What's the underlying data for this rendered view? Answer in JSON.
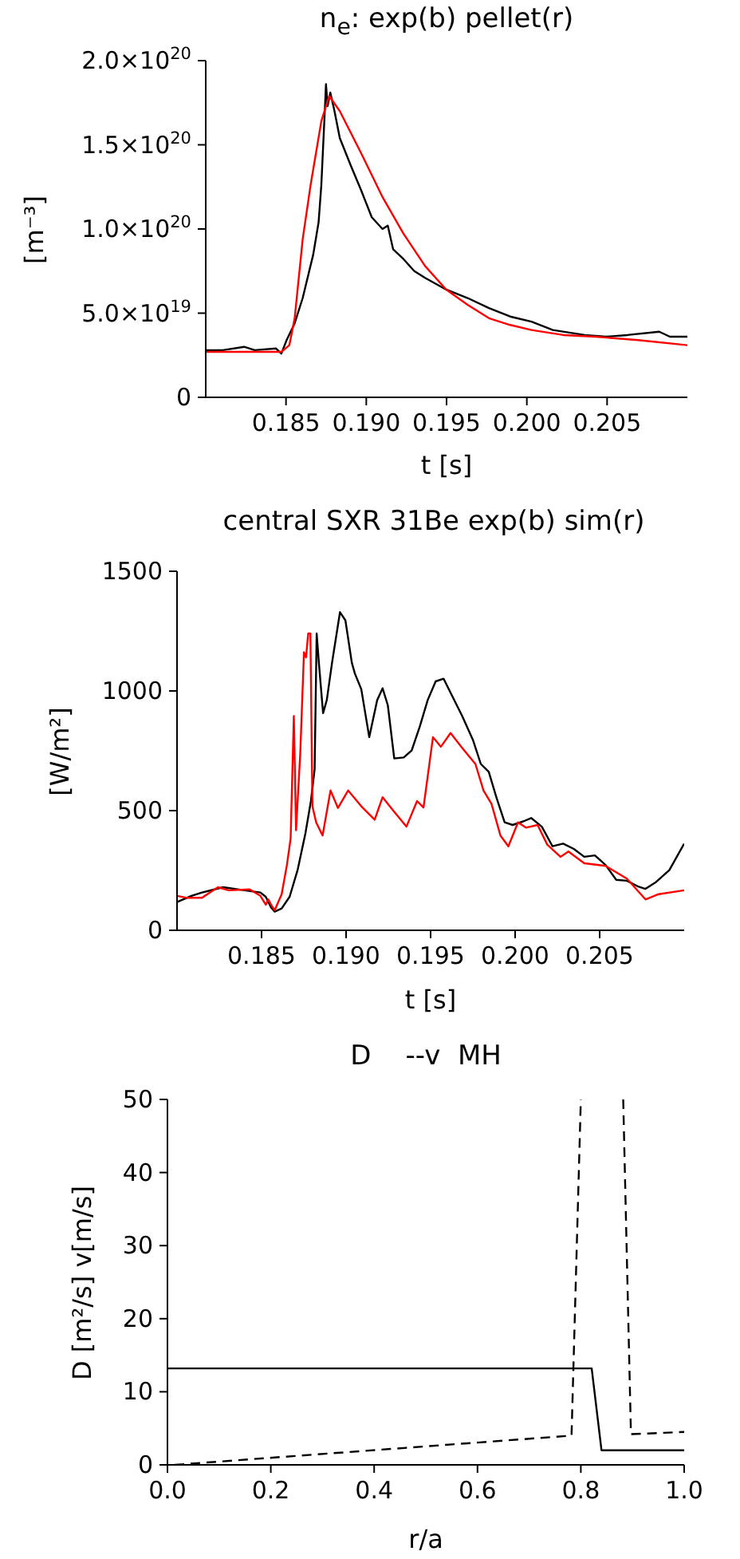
{
  "chart_data": [
    {
      "type": "line",
      "title": "n$_{e}$: exp(b) pellet(r)",
      "xlabel": "t [s]",
      "ylabel": "[m⁻³]",
      "xlim": [
        0.18,
        0.21
      ],
      "xticks": [
        0.185,
        {
          "value": 0.19,
          "label": "0.190"
        },
        0.195,
        {
          "value": 0.2,
          "label": "0.200"
        },
        0.205
      ],
      "ylim": [
        0,
        2e+20
      ],
      "yticks": [
        0,
        {
          "value": 5e+19,
          "label": "5.0×10$^{19}$"
        },
        {
          "value": 1e+20,
          "label": "1.0×10$^{20}$"
        },
        {
          "value": 1.5e+20,
          "label": "1.5×10$^{20}$"
        },
        {
          "value": 2e+20,
          "label": "2.0×10$^{20}$"
        }
      ],
      "series": [
        {
          "color": "#000000",
          "x": [
            0.18,
            0.18106,
            0.18239,
            0.18305,
            0.18438,
            0.18471,
            0.18504,
            0.18554,
            0.18604,
            0.1867,
            0.18703,
            0.1872,
            0.18743,
            0.18749,
            0.18759,
            0.18776,
            0.18802,
            0.18835,
            0.18902,
            0.18968,
            0.19034,
            0.19101,
            0.19134,
            0.19167,
            0.19233,
            0.19299,
            0.19366,
            0.19498,
            0.19631,
            0.19764,
            0.19896,
            0.20029,
            0.20162,
            0.2036,
            0.20493,
            0.20626,
            0.20825,
            0.20891,
            0.21
          ],
          "values": [
            2.8e+19,
            2.8e+19,
            3e+19,
            2.8e+19,
            2.9e+19,
            2.6e+19,
            3.4e+19,
            4.4e+19,
            5.9e+19,
            8.5e+19,
            1.04e+20,
            1.26e+20,
            1.73e+20,
            1.86e+20,
            1.73e+20,
            1.81e+20,
            1.7e+20,
            1.54e+20,
            1.38e+20,
            1.23e+20,
            1.07e+20,
            1e+20,
            1.02e+20,
            8.8e+19,
            8.2e+19,
            7.5e+19,
            7.1e+19,
            6.4e+19,
            5.9e+19,
            5.3e+19,
            4.8e+19,
            4.5e+19,
            4e+19,
            3.7e+19,
            3.6e+19,
            3.7e+19,
            3.9e+19,
            3.6e+19,
            3.6e+19
          ]
        },
        {
          "color": "#ff0000",
          "x": [
            0.18,
            0.18471,
            0.18521,
            0.18554,
            0.18604,
            0.18653,
            0.1872,
            0.18769,
            0.18835,
            0.18968,
            0.19101,
            0.19233,
            0.19366,
            0.19498,
            0.19631,
            0.19764,
            0.19896,
            0.20029,
            0.20228,
            0.20427,
            0.20692,
            0.21
          ],
          "values": [
            2.7e+19,
            2.7e+19,
            3.1e+19,
            4.7e+19,
            9.4e+19,
            1.26e+20,
            1.64e+20,
            1.79e+20,
            1.7e+20,
            1.45e+20,
            1.19e+20,
            9.7e+19,
            7.8e+19,
            6.4e+19,
            5.5e+19,
            4.7e+19,
            4.3e+19,
            4e+19,
            3.7e+19,
            3.6e+19,
            3.4e+19,
            3.1e+19
          ]
        }
      ]
    },
    {
      "type": "line",
      "title": "central SXR 31Be exp(b) sim(r)",
      "xlabel": "t [s]",
      "ylabel": "[W/m²]",
      "xlim": [
        0.18,
        0.21
      ],
      "xticks": [
        0.185,
        {
          "value": 0.19,
          "label": "0.190"
        },
        0.195,
        {
          "value": 0.2,
          "label": "0.200"
        },
        0.205
      ],
      "ylim": [
        0,
        1500
      ],
      "yticks": [
        0,
        500,
        1000,
        1500
      ],
      "series": [
        {
          "color": "#000000",
          "x": [
            0.18,
            0.18085,
            0.18148,
            0.18273,
            0.18399,
            0.18493,
            0.18525,
            0.18556,
            0.18578,
            0.18619,
            0.18666,
            0.18713,
            0.1876,
            0.18792,
            0.18814,
            0.18826,
            0.18839,
            0.18864,
            0.18886,
            0.18917,
            0.18964,
            0.18996,
            0.19034,
            0.19052,
            0.1909,
            0.19137,
            0.19184,
            0.19216,
            0.19247,
            0.19285,
            0.19341,
            0.19388,
            0.19436,
            0.19483,
            0.1953,
            0.19577,
            0.19624,
            0.19687,
            0.1975,
            0.19797,
            0.19844,
            0.19891,
            0.19938,
            0.19985,
            0.20048,
            0.20095,
            0.20158,
            0.20221,
            0.20284,
            0.20347,
            0.20409,
            0.20472,
            0.20535,
            0.20598,
            0.20661,
            0.20724,
            0.20771,
            0.20834,
            0.20912,
            0.21
          ],
          "values": [
            118,
            144,
            158,
            180,
            167,
            158,
            140,
            96,
            78,
            91,
            140,
            251,
            407,
            540,
            673,
            1240,
            1118,
            907,
            962,
            1118,
            1329,
            1295,
            1118,
            1073,
            1007,
            807,
            962,
            1011,
            940,
            718,
            722,
            751,
            851,
            962,
            1040,
            1051,
            984,
            895,
            796,
            695,
            662,
            551,
            451,
            440,
            455,
            469,
            433,
            351,
            362,
            340,
            307,
            313,
            273,
            211,
            207,
            184,
            173,
            202,
            251,
            362
          ]
        },
        {
          "color": "#ff0000",
          "x": [
            0.18,
            0.18053,
            0.18148,
            0.18242,
            0.18305,
            0.1843,
            0.18493,
            0.18525,
            0.1854,
            0.18562,
            0.18578,
            0.18619,
            0.1865,
            0.18672,
            0.18691,
            0.18704,
            0.18729,
            0.18751,
            0.18763,
            0.18776,
            0.18789,
            0.18801,
            0.18823,
            0.18861,
            0.18908,
            0.18952,
            0.19012,
            0.1909,
            0.19169,
            0.19216,
            0.19279,
            0.19357,
            0.1942,
            0.19458,
            0.19514,
            0.19561,
            0.19618,
            0.19687,
            0.19765,
            0.19813,
            0.1986,
            0.19913,
            0.1996,
            0.20017,
            0.20064,
            0.20133,
            0.2019,
            0.20268,
            0.20315,
            0.20409,
            0.20535,
            0.20661,
            0.20771,
            0.20849,
            0.21
          ],
          "values": [
            144,
            136,
            136,
            180,
            167,
            171,
            144,
            107,
            129,
            100,
            84,
            151,
            273,
            384,
            895,
            418,
            740,
            1162,
            1140,
            1240,
            1240,
            518,
            451,
            396,
            584,
            511,
            584,
            518,
            462,
            556,
            500,
            433,
            540,
            513,
            807,
            767,
            824,
            762,
            695,
            584,
            529,
            396,
            351,
            451,
            429,
            440,
            358,
            307,
            329,
            280,
            269,
            216,
            129,
            151,
            167
          ]
        }
      ]
    },
    {
      "type": "line",
      "title": "D    --v  MH",
      "xlabel": "r/a",
      "ylabel": "D [m²/s] v[m/s]",
      "xlim": [
        0,
        1
      ],
      "xticks": [
        {
          "value": 0,
          "label": "0.0"
        },
        0.2,
        0.4,
        0.6,
        0.8,
        {
          "value": 1,
          "label": "1.0"
        }
      ],
      "ylim": [
        0,
        50
      ],
      "yticks": [
        0,
        10,
        20,
        30,
        40,
        50
      ],
      "series": [
        {
          "color": "#000000",
          "line_style": "solid",
          "x": [
            0,
            0.821,
            0.84,
            1
          ],
          "values": [
            13.2,
            13.2,
            2.0,
            2.0
          ]
        },
        {
          "color": "#000000",
          "line_style": "dashed",
          "x": [
            0.014,
            0.782,
            0.8,
            0.82,
            0.882,
            0.897,
            1
          ],
          "values": [
            0,
            4.0,
            50,
            null,
            50,
            4.2,
            4.5
          ]
        }
      ]
    }
  ]
}
